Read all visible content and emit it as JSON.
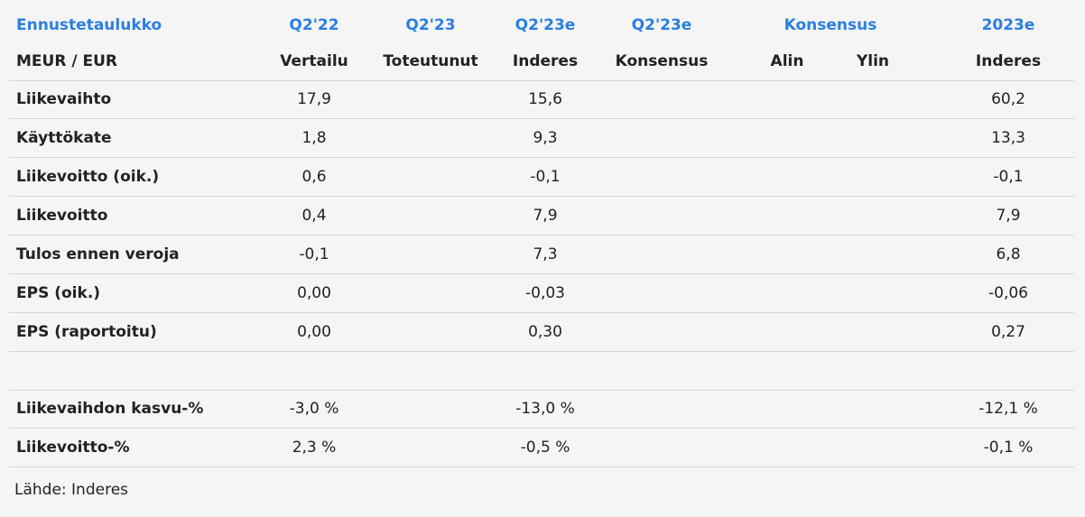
{
  "header": {
    "row1": [
      "Ennustetaulukko",
      "Q2'22",
      "Q2'23",
      "Q2'23e",
      "Q2'23e",
      "Konsensus",
      "2023e"
    ],
    "row2": [
      "MEUR / EUR",
      "Vertailu",
      "Toteutunut",
      "Inderes",
      "Konsensus",
      "Alin",
      "Ylin",
      "Inderes"
    ]
  },
  "table": {
    "rows": [
      {
        "label": "Liikevaihto",
        "q2_22": "17,9",
        "q2_23e": "15,6",
        "y2023e": "60,2"
      },
      {
        "label": "Käyttökate",
        "q2_22": "1,8",
        "q2_23e": "9,3",
        "y2023e": "13,3"
      },
      {
        "label": "Liikevoitto (oik.)",
        "q2_22": "0,6",
        "q2_23e": "-0,1",
        "y2023e": "-0,1"
      },
      {
        "label": "Liikevoitto",
        "q2_22": "0,4",
        "q2_23e": "7,9",
        "y2023e": "7,9"
      },
      {
        "label": "Tulos ennen veroja",
        "q2_22": "-0,1",
        "q2_23e": "7,3",
        "y2023e": "6,8"
      },
      {
        "label": "EPS (oik.)",
        "q2_22": "0,00",
        "q2_23e": "-0,03",
        "y2023e": "-0,06"
      },
      {
        "label": "EPS (raportoitu)",
        "q2_22": "0,00",
        "q2_23e": "0,30",
        "y2023e": "0,27"
      }
    ],
    "ratio_rows": [
      {
        "label": "Liikevaihdon kasvu-%",
        "q2_22": "-3,0 %",
        "q2_23e": "-13,0 %",
        "y2023e": "-12,1 %"
      },
      {
        "label": "Liikevoitto-%",
        "q2_22": "2,3 %",
        "q2_23e": "-0,5 %",
        "y2023e": "-0,1 %"
      }
    ]
  },
  "source": "Lähde: Inderes"
}
